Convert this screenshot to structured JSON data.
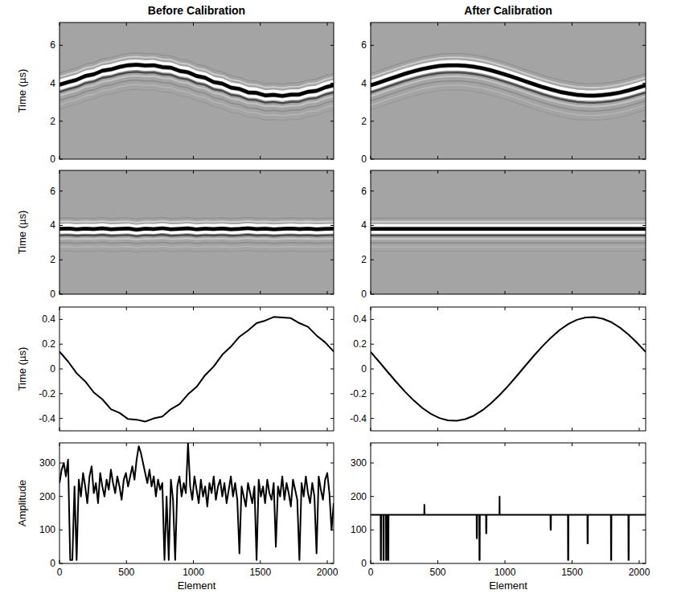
{
  "chart_data": [
    {
      "type": "image",
      "title": "Before Calibration",
      "ylabel": "Time (µs)",
      "tick_labels": "y",
      "xlim": [
        0,
        2048
      ],
      "ylim": [
        0,
        7.2
      ],
      "xticks": [
        0,
        500,
        1000,
        1500,
        2000
      ],
      "yticks": [
        0,
        2,
        4,
        6
      ],
      "x": [
        0,
        64,
        128,
        192,
        256,
        320,
        384,
        448,
        512,
        576,
        640,
        704,
        768,
        832,
        896,
        960,
        1024,
        1088,
        1152,
        1216,
        1280,
        1344,
        1408,
        1472,
        1536,
        1600,
        1664,
        1728,
        1792,
        1856,
        1920,
        1984,
        2048
      ],
      "values": [
        3.92,
        4.06,
        4.18,
        4.38,
        4.47,
        4.66,
        4.73,
        4.86,
        4.95,
        4.98,
        4.93,
        4.95,
        4.85,
        4.82,
        4.65,
        4.58,
        4.38,
        4.29,
        4.06,
        3.98,
        3.77,
        3.7,
        3.52,
        3.49,
        3.36,
        3.39,
        3.33,
        3.4,
        3.41,
        3.55,
        3.6,
        3.78,
        3.9
      ]
    },
    {
      "type": "image",
      "title": "After Calibration",
      "tick_labels": "y",
      "xlim": [
        0,
        2048
      ],
      "ylim": [
        0,
        7.2
      ],
      "xticks": [
        0,
        500,
        1000,
        1500,
        2000
      ],
      "yticks": [
        0,
        2,
        4,
        6
      ],
      "x": [
        0,
        64,
        128,
        192,
        256,
        320,
        384,
        448,
        512,
        576,
        640,
        704,
        768,
        832,
        896,
        960,
        1024,
        1088,
        1152,
        1216,
        1280,
        1344,
        1408,
        1472,
        1536,
        1600,
        1664,
        1728,
        1792,
        1856,
        1920,
        1984,
        2048
      ],
      "values": [
        3.89,
        4.04,
        4.2,
        4.35,
        4.5,
        4.63,
        4.75,
        4.84,
        4.91,
        4.94,
        4.95,
        4.92,
        4.87,
        4.79,
        4.68,
        4.55,
        4.41,
        4.26,
        4.1,
        3.95,
        3.8,
        3.67,
        3.55,
        3.46,
        3.39,
        3.36,
        3.35,
        3.38,
        3.43,
        3.51,
        3.62,
        3.75,
        3.89
      ]
    },
    {
      "type": "image",
      "ylabel": "Time (µs)",
      "tick_labels": "y",
      "xlim": [
        0,
        2048
      ],
      "ylim": [
        0,
        7.2
      ],
      "xticks": [
        0,
        500,
        1000,
        1500,
        2000
      ],
      "yticks": [
        0,
        2,
        4,
        6
      ],
      "x": [
        0,
        64,
        128,
        192,
        256,
        320,
        384,
        448,
        512,
        576,
        640,
        704,
        768,
        832,
        896,
        960,
        1024,
        1088,
        1152,
        1216,
        1280,
        1344,
        1408,
        1472,
        1536,
        1600,
        1664,
        1728,
        1792,
        1856,
        1920,
        1984,
        2048
      ],
      "values": [
        3.8,
        3.82,
        3.78,
        3.81,
        3.79,
        3.83,
        3.78,
        3.8,
        3.82,
        3.75,
        3.81,
        3.79,
        3.84,
        3.78,
        3.8,
        3.83,
        3.77,
        3.81,
        3.79,
        3.82,
        3.78,
        3.8,
        3.84,
        3.79,
        3.81,
        3.77,
        3.8,
        3.82,
        3.79,
        3.81,
        3.78,
        3.8,
        3.81
      ]
    },
    {
      "type": "image",
      "tick_labels": "y",
      "xlim": [
        0,
        2048
      ],
      "ylim": [
        0,
        7.2
      ],
      "xticks": [
        0,
        500,
        1000,
        1500,
        2000
      ],
      "yticks": [
        0,
        2,
        4,
        6
      ],
      "x": [
        0,
        64,
        128,
        192,
        256,
        320,
        384,
        448,
        512,
        576,
        640,
        704,
        768,
        832,
        896,
        960,
        1024,
        1088,
        1152,
        1216,
        1280,
        1344,
        1408,
        1472,
        1536,
        1600,
        1664,
        1728,
        1792,
        1856,
        1920,
        1984,
        2048
      ],
      "values": [
        3.8,
        3.8,
        3.8,
        3.8,
        3.8,
        3.8,
        3.8,
        3.8,
        3.8,
        3.8,
        3.8,
        3.8,
        3.8,
        3.8,
        3.8,
        3.8,
        3.8,
        3.8,
        3.8,
        3.8,
        3.8,
        3.8,
        3.8,
        3.8,
        3.8,
        3.8,
        3.8,
        3.8,
        3.8,
        3.8,
        3.8,
        3.8,
        3.8
      ]
    },
    {
      "type": "line",
      "ylabel": "Time (µs)",
      "tick_labels": "y",
      "xlim": [
        0,
        2048
      ],
      "ylim": [
        -0.5,
        0.5
      ],
      "xticks": [
        0,
        500,
        1000,
        1500,
        2000
      ],
      "yticks": [
        -0.4,
        -0.2,
        0,
        0.2,
        0.4
      ],
      "x": [
        0,
        64,
        128,
        192,
        256,
        320,
        384,
        448,
        512,
        576,
        640,
        704,
        768,
        832,
        896,
        960,
        1024,
        1088,
        1152,
        1216,
        1280,
        1344,
        1408,
        1472,
        1536,
        1600,
        1664,
        1728,
        1792,
        1856,
        1920,
        1984,
        2048
      ],
      "values": [
        0.14,
        0.06,
        -0.035,
        -0.1,
        -0.19,
        -0.245,
        -0.325,
        -0.355,
        -0.405,
        -0.41,
        -0.425,
        -0.4,
        -0.385,
        -0.325,
        -0.285,
        -0.205,
        -0.145,
        -0.05,
        0.02,
        0.115,
        0.18,
        0.26,
        0.31,
        0.37,
        0.39,
        0.42,
        0.415,
        0.41,
        0.37,
        0.34,
        0.27,
        0.215,
        0.14
      ]
    },
    {
      "type": "line",
      "tick_labels": "y",
      "xlim": [
        0,
        2048
      ],
      "ylim": [
        -0.5,
        0.5
      ],
      "xticks": [
        0,
        500,
        1000,
        1500,
        2000
      ],
      "yticks": [
        -0.4,
        -0.2,
        0,
        0.2,
        0.4
      ],
      "x": [
        0,
        64,
        128,
        192,
        256,
        320,
        384,
        448,
        512,
        576,
        640,
        704,
        768,
        832,
        896,
        960,
        1024,
        1088,
        1152,
        1216,
        1280,
        1344,
        1408,
        1472,
        1536,
        1600,
        1664,
        1728,
        1792,
        1856,
        1920,
        1984,
        2048
      ],
      "values": [
        0.137,
        0.057,
        -0.026,
        -0.107,
        -0.184,
        -0.254,
        -0.315,
        -0.363,
        -0.397,
        -0.416,
        -0.419,
        -0.406,
        -0.378,
        -0.334,
        -0.278,
        -0.211,
        -0.137,
        -0.057,
        0.026,
        0.107,
        0.184,
        0.254,
        0.315,
        0.363,
        0.397,
        0.416,
        0.419,
        0.406,
        0.378,
        0.334,
        0.278,
        0.211,
        0.137
      ]
    },
    {
      "type": "line",
      "ylabel": "Amplitude",
      "xlabel": "Element",
      "xlim": [
        0,
        2048
      ],
      "ylim": [
        0,
        360
      ],
      "xticks": [
        0,
        500,
        1000,
        1500,
        2000
      ],
      "yticks": [
        0,
        100,
        200,
        300
      ],
      "x": [
        0,
        16,
        32,
        48,
        64,
        80,
        96,
        112,
        128,
        144,
        160,
        176,
        192,
        208,
        224,
        240,
        256,
        272,
        288,
        304,
        320,
        336,
        352,
        368,
        384,
        400,
        416,
        432,
        448,
        464,
        480,
        496,
        512,
        528,
        544,
        560,
        576,
        592,
        608,
        624,
        640,
        656,
        672,
        688,
        704,
        720,
        736,
        752,
        768,
        784,
        800,
        816,
        832,
        848,
        864,
        880,
        896,
        912,
        928,
        944,
        960,
        976,
        992,
        1008,
        1024,
        1040,
        1056,
        1072,
        1088,
        1104,
        1120,
        1136,
        1152,
        1168,
        1184,
        1200,
        1216,
        1232,
        1248,
        1264,
        1280,
        1296,
        1312,
        1328,
        1344,
        1360,
        1376,
        1392,
        1408,
        1424,
        1440,
        1456,
        1472,
        1488,
        1504,
        1520,
        1536,
        1552,
        1568,
        1584,
        1600,
        1616,
        1632,
        1648,
        1664,
        1680,
        1696,
        1712,
        1728,
        1744,
        1760,
        1776,
        1792,
        1808,
        1824,
        1840,
        1856,
        1872,
        1888,
        1904,
        1920,
        1936,
        1952,
        1968,
        1984,
        2000,
        2016,
        2032,
        2048
      ],
      "values": [
        240,
        280,
        300,
        260,
        310,
        10,
        10,
        230,
        10,
        250,
        200,
        270,
        230,
        180,
        260,
        290,
        210,
        240,
        180,
        270,
        230,
        200,
        250,
        220,
        280,
        240,
        210,
        260,
        230,
        190,
        250,
        270,
        230,
        260,
        290,
        250,
        310,
        350,
        330,
        300,
        270,
        240,
        280,
        230,
        260,
        200,
        250,
        220,
        240,
        10,
        200,
        10,
        250,
        190,
        10,
        230,
        260,
        200,
        240,
        210,
        360,
        230,
        190,
        260,
        220,
        180,
        250,
        200,
        230,
        170,
        240,
        210,
        260,
        190,
        230,
        250,
        200,
        240,
        180,
        220,
        260,
        200,
        240,
        190,
        30,
        230,
        200,
        170,
        240,
        210,
        180,
        230,
        10,
        250,
        200,
        230,
        180,
        250,
        210,
        190,
        240,
        50,
        230,
        200,
        260,
        190,
        240,
        210,
        170,
        250,
        220,
        190,
        10,
        240,
        200,
        260,
        210,
        180,
        240,
        200,
        30,
        260,
        220,
        190,
        250,
        270,
        210,
        100,
        180
      ]
    },
    {
      "type": "line",
      "xlabel": "Element",
      "xlim": [
        0,
        2048
      ],
      "ylim": [
        0,
        360
      ],
      "xticks": [
        0,
        500,
        1000,
        1500,
        2000
      ],
      "yticks": [
        0,
        100,
        200,
        300
      ],
      "x": [
        0,
        74,
        75,
        77,
        78,
        94,
        95,
        97,
        98,
        114,
        115,
        117,
        118,
        129,
        130,
        132,
        133,
        399,
        400,
        401,
        789,
        790,
        792,
        793,
        809,
        810,
        812,
        813,
        859,
        860,
        862,
        863,
        959,
        960,
        961,
        1339,
        1340,
        1342,
        1343,
        1469,
        1470,
        1472,
        1473,
        1614,
        1615,
        1617,
        1618,
        1789,
        1790,
        1792,
        1793,
        1919,
        1920,
        1922,
        1923,
        2048
      ],
      "values": [
        145,
        145,
        10,
        10,
        145,
        145,
        10,
        10,
        145,
        145,
        10,
        10,
        145,
        145,
        10,
        10,
        145,
        145,
        175,
        145,
        145,
        75,
        75,
        145,
        145,
        10,
        10,
        145,
        145,
        90,
        90,
        145,
        145,
        200,
        145,
        145,
        100,
        100,
        145,
        145,
        10,
        10,
        145,
        145,
        60,
        60,
        145,
        145,
        10,
        10,
        145,
        145,
        10,
        10,
        145,
        145
      ]
    }
  ]
}
